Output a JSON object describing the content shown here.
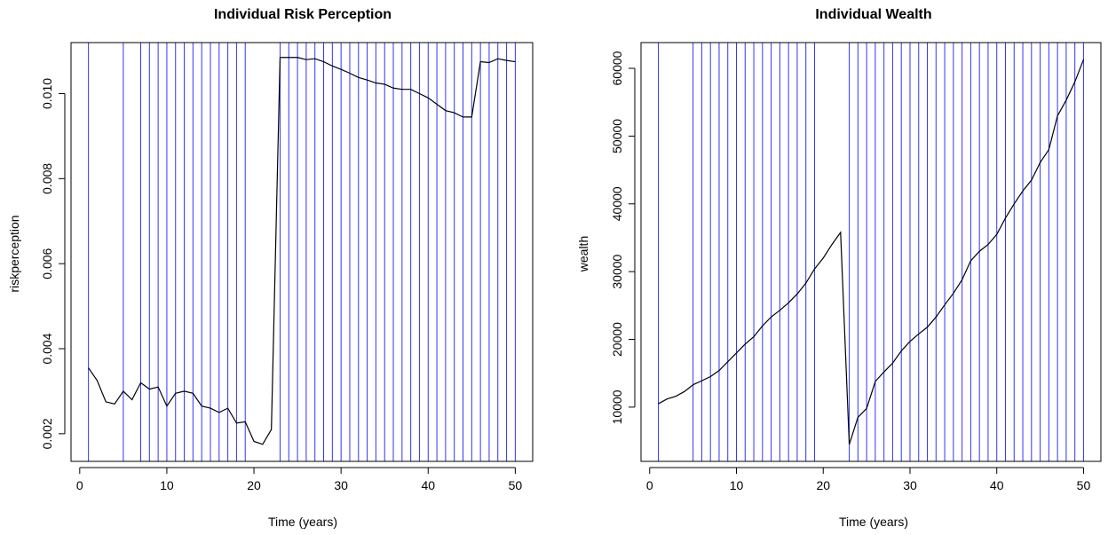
{
  "colors": {
    "vline": "#3333ff",
    "series": "#000000",
    "frame": "#000000"
  },
  "chart_data": [
    {
      "type": "line",
      "title": "Individual Risk Perception",
      "xlabel": "Time (years)",
      "ylabel": "riskperception",
      "xlim": [
        -1,
        52
      ],
      "ylim": [
        0.00135,
        0.0112
      ],
      "xticks": [
        0,
        10,
        20,
        30,
        40,
        50
      ],
      "xtick_labels": [
        "0",
        "10",
        "20",
        "30",
        "40",
        "50"
      ],
      "yticks": [
        0.002,
        0.004,
        0.006,
        0.008,
        0.01
      ],
      "ytick_labels": [
        "0.002",
        "0.004",
        "0.006",
        "0.008",
        "0.010"
      ],
      "vertical_lines_x": [
        1,
        5,
        7,
        8,
        9,
        10,
        11,
        12,
        13,
        14,
        15,
        16,
        17,
        18,
        19,
        23,
        24,
        25,
        26,
        27,
        28,
        29,
        30,
        31,
        32,
        33,
        34,
        35,
        36,
        37,
        38,
        39,
        40,
        41,
        42,
        43,
        44,
        45,
        46,
        47,
        48,
        49,
        50
      ],
      "series": [
        {
          "x": [
            1,
            2,
            3,
            4,
            5,
            6,
            7,
            8,
            9,
            10,
            11,
            12,
            13,
            14,
            15,
            16,
            17,
            18,
            19,
            20,
            21,
            22,
            23,
            24,
            25,
            26,
            27,
            28,
            29,
            30,
            31,
            32,
            33,
            34,
            35,
            36,
            37,
            38,
            39,
            40,
            41,
            42,
            43,
            44,
            45,
            46,
            47,
            48,
            49,
            50
          ],
          "values": [
            0.00355,
            0.00325,
            0.00275,
            0.0027,
            0.003,
            0.0028,
            0.0032,
            0.00305,
            0.0031,
            0.00265,
            0.00295,
            0.003,
            0.00295,
            0.00265,
            0.0026,
            0.0025,
            0.0026,
            0.00225,
            0.00228,
            0.00182,
            0.00175,
            0.0021,
            0.01085,
            0.01085,
            0.01085,
            0.0108,
            0.01082,
            0.01075,
            0.01065,
            0.01057,
            0.01048,
            0.01038,
            0.01032,
            0.01025,
            0.01022,
            0.01013,
            0.0101,
            0.0101,
            0.01,
            0.0099,
            0.00975,
            0.0096,
            0.00955,
            0.00945,
            0.00945,
            0.01075,
            0.01073,
            0.01082,
            0.01078,
            0.01075
          ]
        }
      ]
    },
    {
      "type": "line",
      "title": "Individual Wealth",
      "xlabel": "Time (years)",
      "ylabel": "wealth",
      "xlim": [
        -1,
        52
      ],
      "ylim": [
        2000,
        63800
      ],
      "xticks": [
        0,
        10,
        20,
        30,
        40,
        50
      ],
      "xtick_labels": [
        "0",
        "10",
        "20",
        "30",
        "40",
        "50"
      ],
      "yticks": [
        10000,
        20000,
        30000,
        40000,
        50000,
        60000
      ],
      "ytick_labels": [
        "10000",
        "20000",
        "30000",
        "40000",
        "50000",
        "60000"
      ],
      "vertical_lines_x": [
        1,
        5,
        6,
        7,
        8,
        9,
        10,
        11,
        12,
        13,
        14,
        15,
        16,
        17,
        18,
        19,
        23,
        24,
        25,
        26,
        27,
        28,
        29,
        30,
        31,
        32,
        33,
        34,
        35,
        36,
        37,
        38,
        39,
        40,
        41,
        42,
        43,
        44,
        45,
        46,
        47,
        48,
        49,
        50
      ],
      "series": [
        {
          "x": [
            1,
            2,
            3,
            4,
            5,
            6,
            7,
            8,
            9,
            10,
            11,
            12,
            13,
            14,
            15,
            16,
            17,
            18,
            19,
            20,
            21,
            22,
            23,
            24,
            25,
            26,
            27,
            28,
            29,
            30,
            31,
            32,
            33,
            34,
            35,
            36,
            37,
            38,
            39,
            40,
            41,
            42,
            43,
            44,
            45,
            46,
            47,
            48,
            49,
            50
          ],
          "values": [
            10500,
            11200,
            11600,
            12300,
            13300,
            13900,
            14500,
            15400,
            16700,
            18000,
            19300,
            20400,
            22000,
            23300,
            24300,
            25400,
            26700,
            28300,
            30400,
            32000,
            34000,
            35800,
            4500,
            8500,
            9800,
            13800,
            15200,
            16500,
            18300,
            19700,
            20800,
            21800,
            23300,
            25100,
            26800,
            28800,
            31600,
            33000,
            34000,
            35500,
            37900,
            40000,
            41900,
            43500,
            46100,
            48000,
            53000,
            55300,
            58000,
            61300
          ]
        }
      ]
    }
  ]
}
